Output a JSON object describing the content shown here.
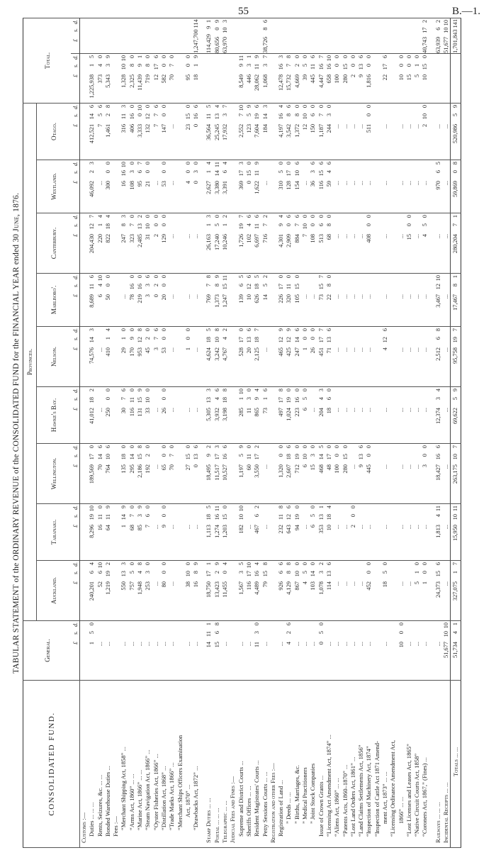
{
  "page": {
    "number": "55",
    "reference": "B.—1."
  },
  "title": {
    "part1": "TABULAR STATEMENT of the ORDINARY REVENUE of the CONSOLIDATED FUND for the FINANCIAL YEAR ended 30 ",
    "part2": "June",
    "part3": ", 1876."
  },
  "headers": {
    "fund": "CONSOLIDATED FUND.",
    "general": "General.",
    "provinces": "Provinces.",
    "total": "Total.",
    "province_names": [
      "Auckland.",
      "Taranaki.",
      "Wellington.",
      "Hawke's Bay.",
      "Nelson.",
      "Marlboro'.",
      "Canterbury.",
      "Westland.",
      "Otago."
    ],
    "currency": [
      "£",
      "s.",
      "d."
    ]
  },
  "rows": [
    {
      "label": "Customs :—",
      "indent": 0,
      "sc": true
    },
    {
      "label": "Duties  ...  ...  ...",
      "indent": 1,
      "values": [
        "1 5 0",
        "240,201 6 4",
        "8,296 19 10",
        "189,569 17 0",
        "41,012 18 2",
        "74,576 14 3",
        "8,689 11 6",
        "204,430 12 7",
        "46,092 2 3",
        "412,521 14 6"
      ],
      "total": "1,225,938 1 5"
    },
    {
      "label": "Rents, Seizures, &c.  ...  ...",
      "indent": 1,
      "values": [
        "...",
        "52 6 10",
        "16 11 0",
        "70 14 6",
        "...",
        "...",
        "6 4 10",
        "220 1 4",
        "...",
        "7 5 6"
      ],
      "total": "373 4 0"
    },
    {
      "label": "Bonded Warehouse Duties  ...",
      "indent": 1,
      "values": [
        "...",
        "1,219 19 2",
        "64 11 9",
        "764 10 6",
        "250 0 0",
        "410 1 4",
        "50 0 0",
        "822 18 4",
        "300 0 0",
        "1,461 2 8"
      ],
      "total": "5,343 3 9"
    },
    {
      "label": "Fees :—",
      "indent": 1
    },
    {
      "label": "“Merchant Shipping Act, 1858”  ...",
      "indent": 2,
      "values": [
        "...",
        "550 13 3",
        "1 14 9",
        "135 18 0",
        "30 7 6",
        "29 1 0",
        "...",
        "247 8 3",
        "16 16 10",
        "316 11 3"
      ],
      "total": "1,328 10 10"
    },
    {
      "label": "“Arms Act, 1860”  ...  ...",
      "indent": 2,
      "values": [
        "...",
        "757 5 0",
        "68 7 0",
        "295 14 0",
        "116 11 0",
        "170 9 0",
        "78 16 0",
        "323 7 0",
        "108 3 0",
        "406 16 0"
      ],
      "total": "2,325 8 0"
    },
    {
      "label": "“Marine Act, 1866”  ...  ...",
      "indent": 2,
      "values": [
        "...",
        "1,948 4 8",
        "85 3 9",
        "2,186 15 8",
        "131 15 9",
        "953 12 8",
        "219 16 0",
        "2,485 13 2",
        "95 6 7",
        "3,333 0 10"
      ],
      "total": "11,439 9 1"
    },
    {
      "label": "“Steam Navigation Act, 1866”  ...",
      "indent": 2,
      "values": [
        "...",
        "253 3 0",
        "7 6 0",
        "192 2 0",
        "33 10 0",
        "45 2 0",
        "3 3 6",
        "31 10 0",
        "21 0 0",
        "132 12 0"
      ],
      "total": "719 8 0"
    },
    {
      "label": "“Oyster Fisheries Act, 1866”  ...",
      "indent": 2,
      "values": [
        "...",
        "...",
        "...",
        "...",
        "...",
        "3 7 6",
        "0 2 0",
        "2 0 0",
        "...",
        "7 7 6"
      ],
      "total": "12 17 6"
    },
    {
      "label": "“Distillation Act, 1868”  ...",
      "indent": 2,
      "values": [
        "...",
        "80 0 0",
        "9 0 0",
        "65 0 0",
        "26 0 0",
        "53 0 0",
        "20 0 0",
        "129 0 0",
        "53 0 0",
        "147 0 0"
      ],
      "total": "582 0 0"
    },
    {
      "label": "“Trade Marks Act, 1866”  ...",
      "indent": 2,
      "values": [
        "...",
        "...",
        "...",
        "70 7 0",
        "...",
        "...",
        "...",
        "...",
        "...",
        "..."
      ],
      "total": "70 7 0"
    },
    {
      "label": "“Merchant Ships Officers Examination",
      "indent": 2
    },
    {
      "label": "Act, 1870”  ...",
      "indent": 4,
      "values": [
        "...",
        "38 10 0",
        "...",
        "27 15 0",
        "...",
        "1 0 0",
        "...",
        "...",
        "4 0 0",
        "23 15 0"
      ],
      "total": "95 0 0"
    },
    {
      "label": "“Drawbacks Act, 1872”  ...",
      "indent": 2,
      "values": [
        "...",
        "16 8 9",
        "...",
        "0 13 6",
        "...",
        "...",
        "...",
        "...",
        "0 3 0",
        "0 16 6"
      ],
      "total": "18 1 9",
      "total2": "1,247,700 11 4"
    },
    {
      "spacer": true
    },
    {
      "label": "Stamp Duties  ...  ...",
      "indent": 0,
      "sc": true,
      "values": [
        "14 11 1",
        "18,750 17 1",
        "1,113 18 5",
        "18,495 9 2",
        "5,305 13 3",
        "4,624 18 5",
        "769 7 8",
        "26,163 1 3",
        "2,627 1 4",
        "36,564 11 5"
      ],
      "total2": "114,429 9 1"
    },
    {
      "label": "Postal  ...  ...  ...",
      "indent": 0,
      "sc": true,
      "values": [
        "15 6 8",
        "13,423 2 9",
        "1,274 16 11",
        "11,517 17 3",
        "3,932 4 6",
        "3,242 10 8",
        "1,373 8 9",
        "17,240 5 0",
        "3,380 14 11",
        "25,245 13 4"
      ],
      "total2": "80,656 0 9"
    },
    {
      "label": "Telegraphic  ...  ...",
      "indent": 0,
      "sc": true,
      "values": [
        "...",
        "11,455 0 4",
        "1,203 15 0",
        "10,527 16 6",
        "3,198 18 8",
        "4,767 4 2",
        "1,247 15 11",
        "10,246 1 2",
        "3,391 6 4",
        "17,932 3 7"
      ],
      "total2": "63,970 10 3"
    },
    {
      "label": "Judicial Fees and Fines :—",
      "indent": 0,
      "sc": true
    },
    {
      "label": "Supreme and District Courts  ...",
      "indent": 1,
      "values": [
        "...",
        "1,567 3 5",
        "182 10 10",
        "1,197 5 9",
        "285 1 10",
        "528 17 0",
        "139 6 5",
        "1,726 19 7",
        "369 17 3",
        "2,552 7 10"
      ],
      "total": "8,549 9 11"
    },
    {
      "label": "Sheriffs Offices  ...  ...",
      "indent": 1,
      "values": [
        "...",
        "116 17 10",
        "...",
        "60 11 0",
        "11 3 0",
        "20 13 6",
        "10 12 6",
        "102 4 6",
        "0 15 0",
        "123 5 9"
      ],
      "total": "446 3 1"
    },
    {
      "label": "Resident Magistrates' Courts  ...",
      "indent": 1,
      "values": [
        "11 3 0",
        "4,489 16 4",
        "467 6 2",
        "3,550 17 2",
        "865 9 4",
        "2,125 18 7",
        "626 18 5",
        "6,697 11 6",
        "1,622 11 9",
        "7,604 19 6"
      ],
      "total": "28,062 11 9"
    },
    {
      "label": "Petty Sessions Courts ...  ...",
      "indent": 1,
      "values": [
        "...",
        "79 15 8",
        "...",
        "...",
        "73 1 6",
        "...",
        "14 5 2",
        "716 7 2",
        "...",
        "184 14 3"
      ],
      "total": "1,068 3 7",
      "total2": "38,726 8 6"
    },
    {
      "label": "Registration and other Fees :—",
      "indent": 0,
      "sc": true
    },
    {
      "label": "Registration of Land  ...",
      "indent": 1,
      "values": [
        "...",
        "926 6 6",
        "232 11 8",
        "1,320 0 0",
        "497 17 8",
        "465 12 9",
        "226 17 0",
        "4,301 9 4",
        "310 5 0",
        "4,197 16 4"
      ],
      "total": "12,478 16 3"
    },
    {
      "label": "”  Deeds ...  ...",
      "indent": 3,
      "values": [
        "4 2 6",
        "4,129 8 8",
        "643 12 6",
        "2,607 18 6",
        "1,024 19 0",
        "425 12 9",
        "320 11 0",
        "2,909 0 6",
        "128 17 0",
        "3,542 8 6"
      ],
      "total": "15,732 7 8"
    },
    {
      "label": "”  Births, Marriages, &c.",
      "indent": 3,
      "values": [
        "...",
        "867 10 0",
        "94 19 0",
        "712 19 0",
        "223 16 0",
        "247 14 6",
        "105 15 0",
        "884 7 6",
        "154 10 6",
        "1,372 8 0"
      ],
      "total": "4,669 2 0"
    },
    {
      "label": "”  Medical Practitioners",
      "indent": 3,
      "values": [
        "...",
        "4 5 0",
        "...",
        "6 10 0",
        "6 5 0",
        "1 0 0",
        "...",
        "7 10 0",
        "...",
        "12 10 0"
      ],
      "total": "39 5 0"
    },
    {
      "label": "”  Joint Stock Companies",
      "indent": 3,
      "values": [
        "...",
        "103 14 0",
        "6 5 0",
        "15 3 0",
        "...",
        "26 0 0",
        "...",
        "108 0 0",
        "36 3 6",
        "150 6 0"
      ],
      "total": "445 11 6"
    },
    {
      "label": "Issue of Crown Grants  ...",
      "indent": 1,
      "values": [
        "0 5 0",
        "1,078 3 2",
        "353 13 1",
        "468 14 5",
        "204 4 3",
        "451 17 7",
        "73 15 7",
        "513 6 0",
        "116 15 6",
        "1,187 7 0"
      ],
      "total": "4,447 16 7"
    },
    {
      "label": "“Licensing Act Amendment Act, 1874” ...",
      "indent": 1,
      "values": [
        "...",
        "114 13 6",
        "10 18 4",
        "48 17 0",
        "18 6 0",
        "71 13 6",
        "22 8 0",
        "68 8 0",
        "59 4 6",
        "244 3 0"
      ],
      "total": "658 16 10"
    },
    {
      "label": "“Aliens Act, 1860”  ...  ...",
      "indent": 1,
      "values": [
        "...",
        "...",
        "...",
        "100 0 0",
        "...",
        "...",
        "...",
        "...",
        "...",
        "..."
      ],
      "total": "100 0 0"
    },
    {
      "label": "“Patents Acts, 1860–1870”  ...",
      "indent": 1,
      "values": [
        "...",
        "...",
        "...",
        "280 15 0",
        "...",
        "...",
        "...",
        "...",
        "...",
        "..."
      ],
      "total": "280 15 0"
    },
    {
      "label": "“Lost Land Orders Act, 1861”  ...",
      "indent": 1,
      "values": [
        "...",
        "...",
        "2 0 0",
        "...",
        "...",
        "...",
        "...",
        "...",
        "...",
        "..."
      ],
      "total": "2 0 0"
    },
    {
      "label": "“Land Claims Settlements Act, 1856”",
      "indent": 1,
      "values": [
        "...",
        "...",
        "...",
        "9 13 6",
        "...",
        "...",
        "...",
        "...",
        "...",
        "..."
      ],
      "total": "9 13 6"
    },
    {
      "label": "“Inspection of Machinery Act, 1874”",
      "indent": 1,
      "values": [
        "...",
        "452 0 0",
        "...",
        "445 0 0",
        "...",
        "...",
        "...",
        "408 0 0",
        "...",
        "511 0 0"
      ],
      "total": "1,816 0 0"
    },
    {
      "label": "“Inspection of Cattle Act 1871 Amend-",
      "indent": 1
    },
    {
      "label": "ment Act, 1873” ...  ...",
      "indent": 3,
      "values": [
        "...",
        "18 5 0",
        "...",
        "...",
        "...",
        "4 12 6",
        "...",
        "...",
        "...",
        "..."
      ],
      "total": "22 17 6"
    },
    {
      "label": "“Licensing Ordinance Amendment Act,",
      "indent": 1
    },
    {
      "label": "1866”  ...  ...",
      "indent": 3,
      "values": [
        "10 0 0",
        "...",
        "...",
        "...",
        "...",
        "...",
        "...",
        "...",
        "...",
        "..."
      ],
      "total": "10 0 0"
    },
    {
      "label": "“Lost Licenses and Leases Act, 1865”",
      "indent": 1,
      "values": [
        "...",
        "...",
        "...",
        "...",
        "...",
        "...",
        "...",
        "15 0 0",
        "...",
        "..."
      ],
      "total": "15 0 0"
    },
    {
      "label": "“Native Circuit Courts Act, 1858”",
      "indent": 1,
      "values": [
        "...",
        "5 1 0",
        "...",
        "...",
        "...",
        "...",
        "...",
        "...",
        "...",
        "..."
      ],
      "total": "5 1 0"
    },
    {
      "label": "“Coroners Act, 1867,” (Fines) ...",
      "indent": 1,
      "values": [
        "...",
        "1 0 0",
        "...",
        "3 0 0",
        "...",
        "...",
        "...",
        "4 5 0",
        "...",
        "2 10 0"
      ],
      "total": "10 15 0",
      "total2": "40,743 17 2"
    },
    {
      "spacer": true
    },
    {
      "label": "Railways  ...  ...  ...",
      "indent": 0,
      "sc": true,
      "values": [
        "...",
        "24,373 15 6",
        "1,813 4 11",
        "18,427 16 6",
        "12,374 3 4",
        "2,512 6 8",
        "3,467 12 10",
        "...",
        "970 6 5",
        "..."
      ],
      "total2": "63,939 6 2"
    },
    {
      "label": "Incidental Receipts  ...  ...",
      "indent": 0,
      "sc": true,
      "values": [
        "51,677 10 10",
        "...",
        "...",
        "...",
        "...",
        "...",
        "...",
        "...",
        "...",
        "..."
      ],
      "total2": "51,677 10 10"
    },
    {
      "label": "Totals ...  ...",
      "indent": 0,
      "totals": true,
      "values": [
        "51,734 4 1",
        "327,075 1 7",
        "15,950 10 11",
        "263,175 10 7",
        "69,622 5 9",
        "95,758 19 7",
        "17,467 8 1",
        "280,204 7 1",
        "59,869 0 8",
        "520,986 5 9"
      ],
      "total2": "1,701,843 14 1"
    }
  ]
}
